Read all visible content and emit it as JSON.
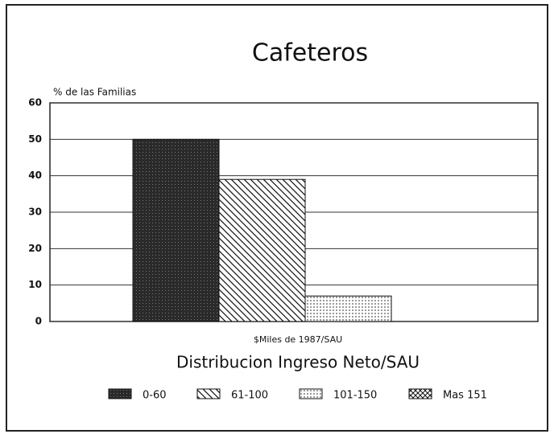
{
  "chart_data": {
    "type": "bar",
    "title": "Cafeteros",
    "y_label": "% de las Familias",
    "x_label": "$Miles de 1987/SAU",
    "subtitle": "Distribucion Ingreso Neto/SAU",
    "categories": [
      "0-60",
      "61-100",
      "101-150",
      "Mas 151"
    ],
    "values": [
      50,
      39,
      7,
      0
    ],
    "ylim": [
      0,
      60
    ],
    "yticks": [
      0,
      10,
      20,
      30,
      40,
      50,
      60
    ],
    "grid": true,
    "legend": "bottom"
  }
}
